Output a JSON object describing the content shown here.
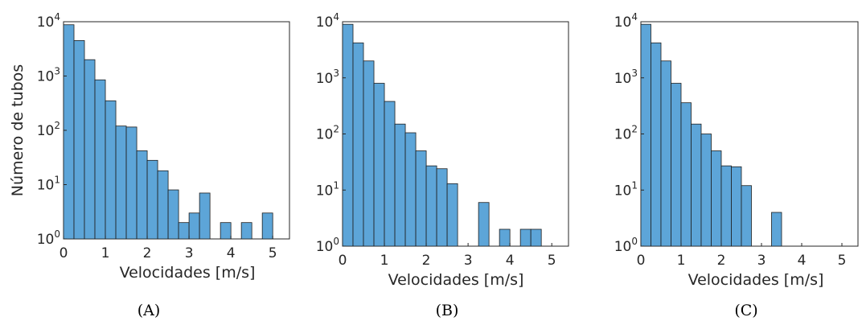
{
  "chart_data": [
    {
      "type": "bar",
      "panel_label": "(A)",
      "xlabel": "Velocidades [m/s]",
      "ylabel": "Número de tubos",
      "xlim": [
        0,
        5.4
      ],
      "ylim": [
        1,
        10000
      ],
      "yscale": "log",
      "bin_width": 0.25,
      "x_ticks": [
        "0",
        "1",
        "2",
        "3",
        "4",
        "5"
      ],
      "y_ticks": [
        {
          "base": "10",
          "exp": "0"
        },
        {
          "base": "10",
          "exp": "1"
        },
        {
          "base": "10",
          "exp": "2"
        },
        {
          "base": "10",
          "exp": "3"
        },
        {
          "base": "10",
          "exp": "4"
        }
      ],
      "bars": [
        {
          "x0": 0.0,
          "value": 8800
        },
        {
          "x0": 0.25,
          "value": 4500
        },
        {
          "x0": 0.5,
          "value": 2000
        },
        {
          "x0": 0.75,
          "value": 850
        },
        {
          "x0": 1.0,
          "value": 350
        },
        {
          "x0": 1.25,
          "value": 120
        },
        {
          "x0": 1.5,
          "value": 115
        },
        {
          "x0": 1.75,
          "value": 42
        },
        {
          "x0": 2.0,
          "value": 28
        },
        {
          "x0": 2.25,
          "value": 18
        },
        {
          "x0": 2.5,
          "value": 8
        },
        {
          "x0": 2.75,
          "value": 2
        },
        {
          "x0": 3.0,
          "value": 3
        },
        {
          "x0": 3.25,
          "value": 7
        },
        {
          "x0": 3.75,
          "value": 2
        },
        {
          "x0": 4.25,
          "value": 2
        },
        {
          "x0": 4.75,
          "value": 3
        }
      ]
    },
    {
      "type": "bar",
      "panel_label": "(B)",
      "xlabel": "Velocidades [m/s]",
      "ylabel": "",
      "xlim": [
        0,
        5.4
      ],
      "ylim": [
        1,
        10000
      ],
      "yscale": "log",
      "bin_width": 0.25,
      "x_ticks": [
        "0",
        "1",
        "2",
        "3",
        "4",
        "5"
      ],
      "y_ticks": [
        {
          "base": "10",
          "exp": "0"
        },
        {
          "base": "10",
          "exp": "1"
        },
        {
          "base": "10",
          "exp": "2"
        },
        {
          "base": "10",
          "exp": "3"
        },
        {
          "base": "10",
          "exp": "4"
        }
      ],
      "bars": [
        {
          "x0": 0.0,
          "value": 9000
        },
        {
          "x0": 0.25,
          "value": 4200
        },
        {
          "x0": 0.5,
          "value": 2000
        },
        {
          "x0": 0.75,
          "value": 800
        },
        {
          "x0": 1.0,
          "value": 380
        },
        {
          "x0": 1.25,
          "value": 150
        },
        {
          "x0": 1.5,
          "value": 105
        },
        {
          "x0": 1.75,
          "value": 50
        },
        {
          "x0": 2.0,
          "value": 27
        },
        {
          "x0": 2.25,
          "value": 24
        },
        {
          "x0": 2.5,
          "value": 13
        },
        {
          "x0": 3.25,
          "value": 6
        },
        {
          "x0": 3.75,
          "value": 2
        },
        {
          "x0": 4.25,
          "value": 2
        },
        {
          "x0": 4.5,
          "value": 2
        }
      ]
    },
    {
      "type": "bar",
      "panel_label": "(C)",
      "xlabel": "Velocidades [m/s]",
      "ylabel": "",
      "xlim": [
        0,
        5.4
      ],
      "ylim": [
        1,
        10000
      ],
      "yscale": "log",
      "bin_width": 0.25,
      "x_ticks": [
        "0",
        "1",
        "2",
        "3",
        "4",
        "5"
      ],
      "y_ticks": [
        {
          "base": "10",
          "exp": "0"
        },
        {
          "base": "10",
          "exp": "1"
        },
        {
          "base": "10",
          "exp": "2"
        },
        {
          "base": "10",
          "exp": "3"
        },
        {
          "base": "10",
          "exp": "4"
        }
      ],
      "bars": [
        {
          "x0": 0.0,
          "value": 9000
        },
        {
          "x0": 0.25,
          "value": 4200
        },
        {
          "x0": 0.5,
          "value": 2000
        },
        {
          "x0": 0.75,
          "value": 800
        },
        {
          "x0": 1.0,
          "value": 360
        },
        {
          "x0": 1.25,
          "value": 150
        },
        {
          "x0": 1.5,
          "value": 100
        },
        {
          "x0": 1.75,
          "value": 50
        },
        {
          "x0": 2.0,
          "value": 27
        },
        {
          "x0": 2.25,
          "value": 26
        },
        {
          "x0": 2.5,
          "value": 12
        },
        {
          "x0": 3.25,
          "value": 4
        }
      ]
    }
  ],
  "colors": {
    "bar_fill": "#5DA5D8",
    "bar_edge": "#1f1f1f",
    "axis": "#262626"
  }
}
